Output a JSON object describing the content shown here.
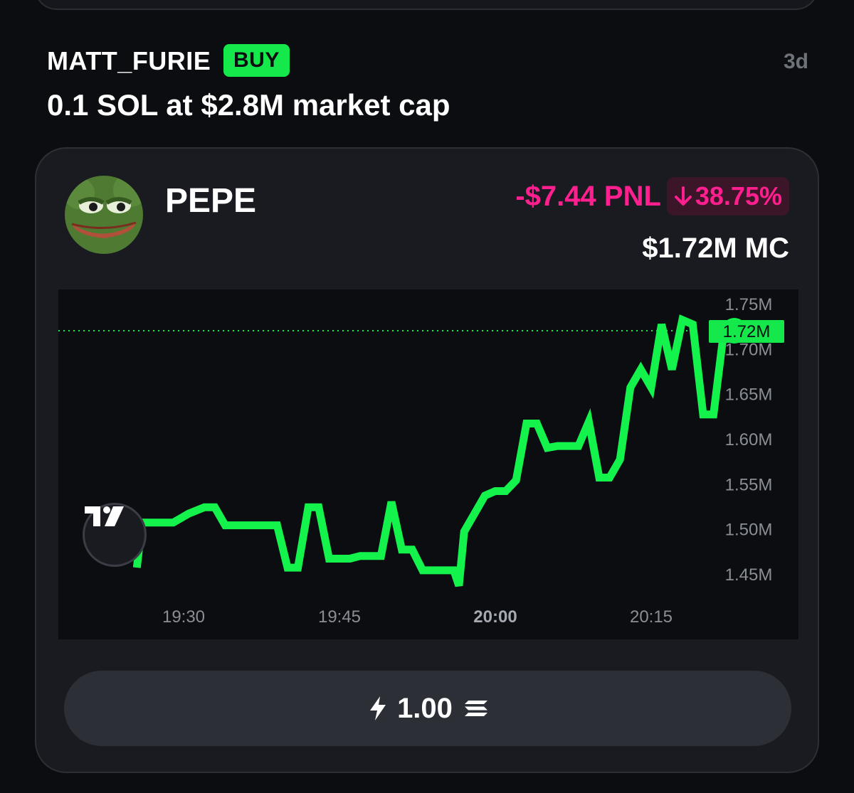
{
  "post": {
    "username": "MATT_FURIE",
    "action_badge": "BUY",
    "time_ago": "3d",
    "description": "0.1 SOL at $2.8M market cap"
  },
  "token": {
    "name": "PEPE",
    "avatar_icon": "pepe-frog-icon",
    "pnl": "-$7.44 PNL",
    "pnl_change": "38.75%",
    "market_cap": "$1.72M MC"
  },
  "colors": {
    "accent_green": "#14e84a",
    "negative_pink": "#ff1f8e",
    "card_bg": "#191b20",
    "page_bg": "#0b0d11"
  },
  "chart_data": {
    "type": "line",
    "y_ticks": [
      "1.75M",
      "1.70M",
      "1.65M",
      "1.60M",
      "1.55M",
      "1.50M",
      "1.45M"
    ],
    "y_tick_values": [
      1.75,
      1.7,
      1.65,
      1.6,
      1.55,
      1.5,
      1.45
    ],
    "x_ticks": [
      "19:30",
      "19:45",
      "20:00",
      "20:15"
    ],
    "x_tick_minutes": [
      30,
      45,
      60,
      75
    ],
    "current_value_label": "1.72M",
    "current_value": 1.72,
    "ylim": [
      1.43,
      1.76
    ],
    "xlim": [
      25.3,
      80.4
    ],
    "grid": false,
    "series": [
      {
        "values": [
          [
            25.5,
            1.457
          ],
          [
            26.0,
            1.507
          ],
          [
            27.5,
            1.507
          ],
          [
            29.0,
            1.507
          ],
          [
            30.5,
            1.517
          ],
          [
            32.0,
            1.524
          ],
          [
            33.0,
            1.524
          ],
          [
            34.0,
            1.504
          ],
          [
            36.0,
            1.504
          ],
          [
            38.0,
            1.504
          ],
          [
            39.0,
            1.504
          ],
          [
            40.0,
            1.457
          ],
          [
            41.0,
            1.457
          ],
          [
            42.0,
            1.524
          ],
          [
            43.0,
            1.524
          ],
          [
            44.0,
            1.467
          ],
          [
            46.0,
            1.467
          ],
          [
            47.0,
            1.47
          ],
          [
            48.0,
            1.47
          ],
          [
            49.0,
            1.47
          ],
          [
            50.0,
            1.53
          ],
          [
            51.0,
            1.477
          ],
          [
            52.0,
            1.477
          ],
          [
            53.0,
            1.454
          ],
          [
            56.0,
            1.454
          ],
          [
            56.5,
            1.437
          ],
          [
            57.0,
            1.497
          ],
          [
            58.0,
            1.517
          ],
          [
            59.0,
            1.537
          ],
          [
            60.0,
            1.542
          ],
          [
            61.0,
            1.542
          ],
          [
            62.0,
            1.554
          ],
          [
            63.0,
            1.617
          ],
          [
            64.0,
            1.617
          ],
          [
            65.0,
            1.59
          ],
          [
            66.0,
            1.592
          ],
          [
            67.0,
            1.592
          ],
          [
            68.0,
            1.592
          ],
          [
            69.0,
            1.619
          ],
          [
            70.0,
            1.557
          ],
          [
            71.0,
            1.557
          ],
          [
            72.0,
            1.577
          ],
          [
            73.0,
            1.657
          ],
          [
            74.0,
            1.677
          ],
          [
            75.0,
            1.657
          ],
          [
            76.0,
            1.727
          ],
          [
            77.0,
            1.677
          ],
          [
            78.0,
            1.732
          ],
          [
            79.0,
            1.727
          ],
          [
            80.0,
            1.627
          ],
          [
            81.0,
            1.627
          ],
          [
            82.0,
            1.72
          ],
          [
            83.0,
            1.72
          ]
        ]
      }
    ]
  }
}
